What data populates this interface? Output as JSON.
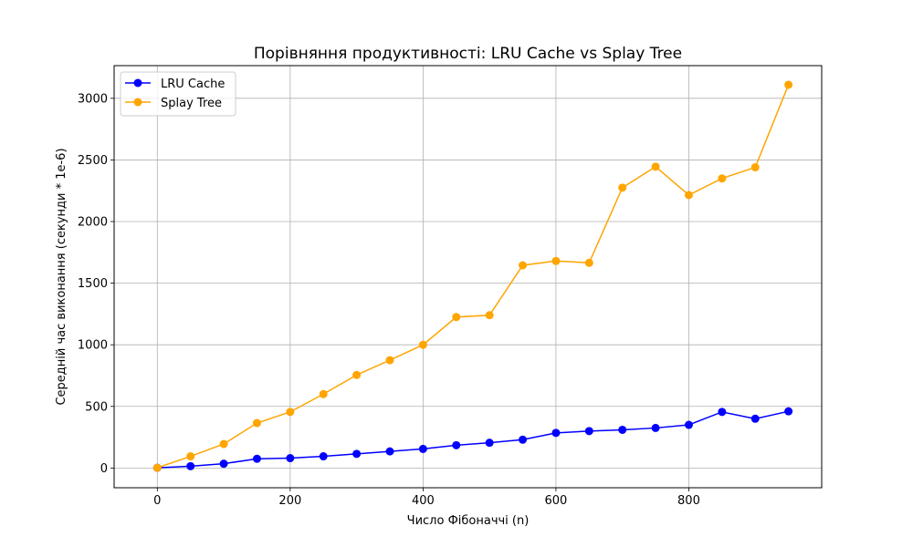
{
  "chart_data": {
    "type": "line",
    "title": "Порівняння продуктивності: LRU Cache vs Splay Tree",
    "xlabel": "Число Фібоначчі (n)",
    "ylabel": "Середній час виконання (секунди * 1e-6)",
    "x": [
      0,
      50,
      100,
      150,
      200,
      250,
      300,
      350,
      400,
      450,
      500,
      550,
      600,
      650,
      700,
      750,
      800,
      850,
      900,
      950
    ],
    "series": [
      {
        "name": "LRU Cache",
        "color": "#0000ff",
        "values": [
          2,
          15,
          35,
          75,
          80,
          95,
          115,
          135,
          155,
          185,
          205,
          230,
          285,
          300,
          310,
          325,
          350,
          455,
          400,
          460
        ]
      },
      {
        "name": "Splay Tree",
        "color": "#ffa500",
        "values": [
          2,
          95,
          195,
          365,
          455,
          600,
          755,
          875,
          1000,
          1225,
          1240,
          1645,
          1680,
          1665,
          2275,
          2445,
          2215,
          2350,
          2440,
          3110
        ]
      }
    ],
    "xlim": [
      -65,
      1000
    ],
    "ylim": [
      -160,
      3265
    ],
    "xticks": [
      0,
      200,
      400,
      600,
      800
    ],
    "yticks": [
      0,
      500,
      1000,
      1500,
      2000,
      2500,
      3000
    ],
    "grid": true,
    "legend_position": "top-left"
  }
}
